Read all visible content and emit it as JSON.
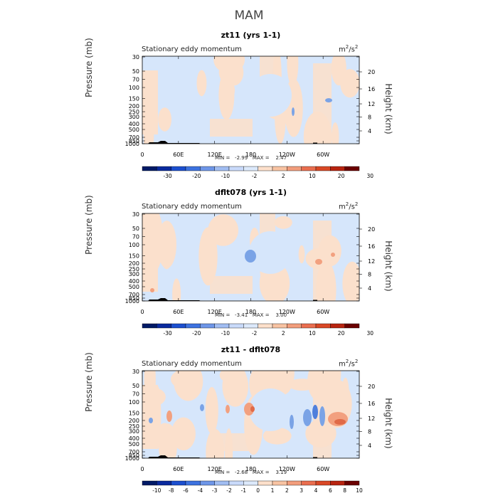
{
  "page": {
    "title": "MAM"
  },
  "chart_data": [
    {
      "type": "heatmap",
      "title": "zt11 (yrs 1-1)",
      "subtitle": "Stationary eddy momentum",
      "units": {
        "base": "m",
        "sup1": "2",
        "mid": "/s",
        "sup2": "2"
      },
      "ylabel": "Pressure (mb)",
      "ylabel_right": "Height (km)",
      "xticks": [
        "0",
        "60E",
        "120E",
        "180",
        "120W",
        "60W"
      ],
      "yticks_pressure": [
        "30",
        "50",
        "70",
        "100",
        "150",
        "200",
        "250",
        "300",
        "400",
        "500",
        "700",
        "850",
        "1000"
      ],
      "yticks_height": [
        "20",
        "16",
        "12",
        "8",
        "4"
      ],
      "minmax_text": "MIN =   -2.99   MAX =    2.47",
      "colorbar_labels": [
        "-30",
        "-20",
        "-10",
        "-2",
        "2",
        "10",
        "20",
        "30"
      ]
    },
    {
      "type": "heatmap",
      "title": "dflt078 (yrs 1-1)",
      "subtitle": "Stationary eddy momentum",
      "units": {
        "base": "m",
        "sup1": "2",
        "mid": "/s",
        "sup2": "2"
      },
      "ylabel": "Pressure (mb)",
      "ylabel_right": "Height (km)",
      "xticks": [
        "0",
        "60E",
        "120E",
        "180",
        "120W",
        "60W"
      ],
      "yticks_pressure": [
        "30",
        "50",
        "70",
        "100",
        "150",
        "200",
        "250",
        "300",
        "400",
        "500",
        "700",
        "850",
        "1000"
      ],
      "yticks_height": [
        "20",
        "16",
        "12",
        "8",
        "4"
      ],
      "minmax_text": "MIN =   -3.41   MAX =    3.00",
      "colorbar_labels": [
        "-30",
        "-20",
        "-10",
        "-2",
        "2",
        "10",
        "20",
        "30"
      ]
    },
    {
      "type": "heatmap",
      "title": "zt11 - dflt078",
      "subtitle": "Stationary eddy momentum",
      "units": {
        "base": "m",
        "sup1": "2",
        "mid": "/s",
        "sup2": "2"
      },
      "ylabel": "Pressure (mb)",
      "ylabel_right": "Height (km)",
      "xticks": [
        "0",
        "60E",
        "120E",
        "180",
        "120W",
        "60W"
      ],
      "yticks_pressure": [
        "30",
        "50",
        "70",
        "100",
        "150",
        "200",
        "250",
        "300",
        "400",
        "500",
        "700",
        "850",
        "1000"
      ],
      "yticks_height": [
        "20",
        "16",
        "12",
        "8",
        "4"
      ],
      "minmax_text": "MIN =   -2.68   MAX =    3.19",
      "colorbar_labels": [
        "-10",
        "-8",
        "-6",
        "-4",
        "-3",
        "-2",
        "-1",
        "0",
        "1",
        "2",
        "3",
        "4",
        "6",
        "8",
        "10"
      ]
    }
  ],
  "colors": {
    "colorbar": [
      "#001a66",
      "#0a2a9e",
      "#1c4fcf",
      "#3d72e0",
      "#6e96e8",
      "#a1bdf2",
      "#c9dafa",
      "#dce9fb",
      "#fde0cb",
      "#f8c3a2",
      "#f29d7c",
      "#ea6e4f",
      "#d94826",
      "#b82410",
      "#6b0000"
    ],
    "pale_blue": "#d6e6fb",
    "pale_orange": "#fbe0cc",
    "mid_blue": "#7aa3e6",
    "mid_orange": "#f2a07f"
  }
}
